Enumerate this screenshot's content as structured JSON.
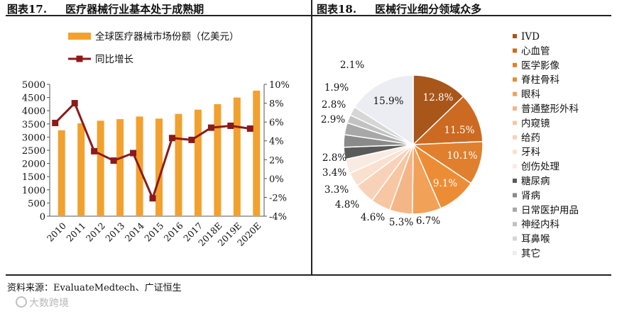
{
  "figure17": {
    "title_no": "图表17.",
    "title": "医疗器械行业基本处于成熟期"
  },
  "figure18": {
    "title_no": "图表18.",
    "title": "医械行业细分领域众多"
  },
  "source": "资料来源：EvaluateMedtech、广证恒生",
  "watermark": "大数跨境",
  "colors": {
    "bar": "#f2a12e",
    "line": "#8b1a1a",
    "axis": "#555555"
  },
  "chart_data": [
    {
      "type": "bar",
      "title": "医疗器械行业基本处于成熟期",
      "categories": [
        "2010",
        "2011",
        "2012",
        "2013",
        "2014",
        "2015",
        "2016",
        "2017",
        "2018E",
        "2019E",
        "2020E"
      ],
      "series": [
        {
          "name": "全球医疗器械市场份额（亿美元）",
          "type": "bar",
          "axis": "left",
          "values": [
            3260,
            3520,
            3620,
            3680,
            3780,
            3700,
            3880,
            4040,
            4250,
            4500,
            4760
          ]
        },
        {
          "name": "同比增长",
          "type": "line",
          "axis": "right",
          "values": [
            5.9,
            8.0,
            2.9,
            1.9,
            2.7,
            -2.1,
            4.3,
            4.1,
            5.4,
            5.6,
            5.3
          ]
        }
      ],
      "ylim_left": [
        0,
        5000
      ],
      "yticks_left": [
        "0",
        "500",
        "1000",
        "1500",
        "2000",
        "2500",
        "3000",
        "3500",
        "4000",
        "4500",
        "5000"
      ],
      "ylim_right": [
        -4,
        10
      ],
      "yticks_right": [
        "-4%",
        "-2%",
        "0%",
        "2%",
        "4%",
        "6%",
        "8%",
        "10%"
      ],
      "legend_position": "top-left",
      "grid": false
    },
    {
      "type": "pie",
      "title": "医械行业细分领域众多",
      "labels": [
        "IVD",
        "心血管",
        "医学影像",
        "脊柱骨科",
        "眼科",
        "普通整形外科",
        "内窥镜",
        "给药",
        "牙科",
        "创伤处理",
        "糖尿病",
        "肾病",
        "日常医护用品",
        "神经内科",
        "耳鼻喉",
        "其它"
      ],
      "values": [
        12.8,
        11.5,
        10.1,
        9.1,
        6.7,
        5.3,
        4.6,
        4.8,
        3.3,
        3.4,
        2.8,
        2.9,
        2.8,
        1.9,
        2.1,
        15.9
      ],
      "value_labels": [
        "12.8%",
        "11.5%",
        "10.1%",
        "9.1%",
        "6.7%",
        "5.3%",
        "4.6%",
        "4.8%",
        "3.3%",
        "3.4%",
        "2.8%",
        "2.9%",
        "2.8%",
        "1.9%",
        "2.1%",
        "15.9%"
      ],
      "colors": [
        "#a8561a",
        "#cc6a22",
        "#e0802e",
        "#ec8d36",
        "#f2a158",
        "#f5b687",
        "#f7c6a3",
        "#f8d2b8",
        "#fae0cf",
        "#faebe2",
        "#5a5a5a",
        "#8a8a8a",
        "#a8a8a8",
        "#c2c2c2",
        "#d6d6d6",
        "#ecedf2"
      ],
      "legend_position": "right"
    }
  ]
}
